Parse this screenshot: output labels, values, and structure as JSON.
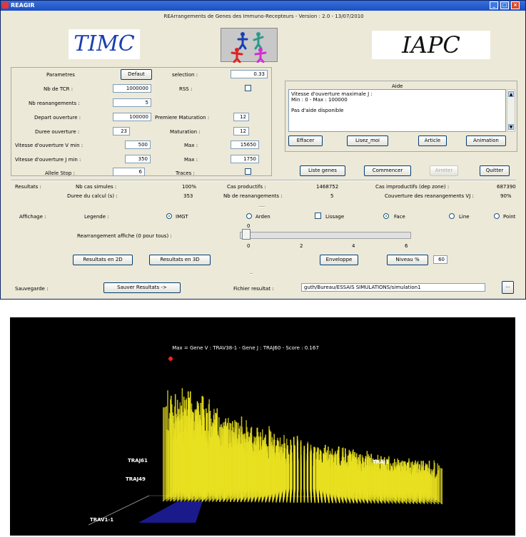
{
  "window": {
    "title": "REAGIR",
    "subtitle": "REArrangements de Genes des Immuno-Recepteurs - Version : 2.0 - 13/07/2010",
    "logo_left": "TIMC",
    "logo_right": "IAPC"
  },
  "params": {
    "header_label": "Parametres",
    "default_button": "Defaut",
    "selection_label": "selection :",
    "selection_value": "0.33",
    "rows": [
      {
        "label": "Nb de TCR :",
        "value": "1000000"
      },
      {
        "label": "Nb reanangements :",
        "value": "5"
      },
      {
        "label": "Depart ouverture :",
        "value": "100000"
      },
      {
        "label": "Duree ouverture :",
        "value": "23"
      },
      {
        "label": "Vitesse d'ouverture V min :",
        "value": "500"
      },
      {
        "label": "Vitesse d'ouverture J min :",
        "value": "350"
      },
      {
        "label": "Allele Stop :",
        "value": "6"
      }
    ],
    "rss_label": "RSS :",
    "premiere_label": "Premiere Maturation :",
    "premiere_value": "12",
    "maturation_label": "Maturation :",
    "maturation_value": "12",
    "max_label": "Max :",
    "max_v_value": "15650",
    "max_j_value": "1750",
    "traces_label": "Traces :"
  },
  "aide": {
    "title": "Aide",
    "line1": "Vitesse d'ouverture maximale J :",
    "line2": "Min : 0 - Max : 100000",
    "line3": "Pas d'aide disponible",
    "buttons": [
      "Effacer",
      "Lisez_moi",
      "Article",
      "Animation"
    ]
  },
  "actions": {
    "liste_genes": "Liste genes",
    "commencer": "Commencer",
    "arreter": "Arreter",
    "quitter": "Quitter"
  },
  "results": {
    "label": "Resultats :",
    "nb_cas_label": "Nb cas simules :",
    "nb_cas_value": "100%",
    "duree_label": "Duree du calcul (s) :",
    "duree_value": "353",
    "cas_prod_label": "Cas productifs :",
    "cas_prod_value": "1468752",
    "nb_rea_label": "Nb de reanangements :",
    "nb_rea_value": "5",
    "cas_improd_label": "Cas improductifs (dep zone) :",
    "cas_improd_value": "687390",
    "couverture_label": "Couverture des reanangements VJ :",
    "couverture_value": "90%"
  },
  "affichage": {
    "label": "Affichage :",
    "legende_label": "Legende :",
    "options": [
      "IMGT",
      "Arden",
      "Lissage",
      "Face",
      "Line",
      "Point"
    ],
    "rearr_label": "Rearrangement affiche (0 pour tous) :",
    "slider_value": 0,
    "slider_top": "0",
    "slider_ticks": [
      "0",
      "2",
      "4",
      "6"
    ],
    "btn_2d": "Resultats en 2D",
    "btn_3d": "Resultats en 3D",
    "enveloppe": "Enveloppe",
    "niveau_label": "Niveau %",
    "niveau_value": "60"
  },
  "sauvegarde": {
    "label": "Sauvegarde :",
    "save_button": "Sauver Resultats ->",
    "fichier_label": "Fichier resultat :",
    "fichier_value": "guth/Bureau/ESSAIS SIMULATIONS/simulation1",
    "browse": "..."
  },
  "plot": {
    "title": "Max = Gene V : TRAV38-1 - Gene J : TRAJ60 - Score : 0.167",
    "labels": [
      "TRAJ61",
      "TRAJ49",
      "TRAJ1",
      "TRAV1-1"
    ],
    "colors": {
      "bars": "#e8e020",
      "base": "#1a1a8c",
      "peak": "#ff2020"
    }
  }
}
